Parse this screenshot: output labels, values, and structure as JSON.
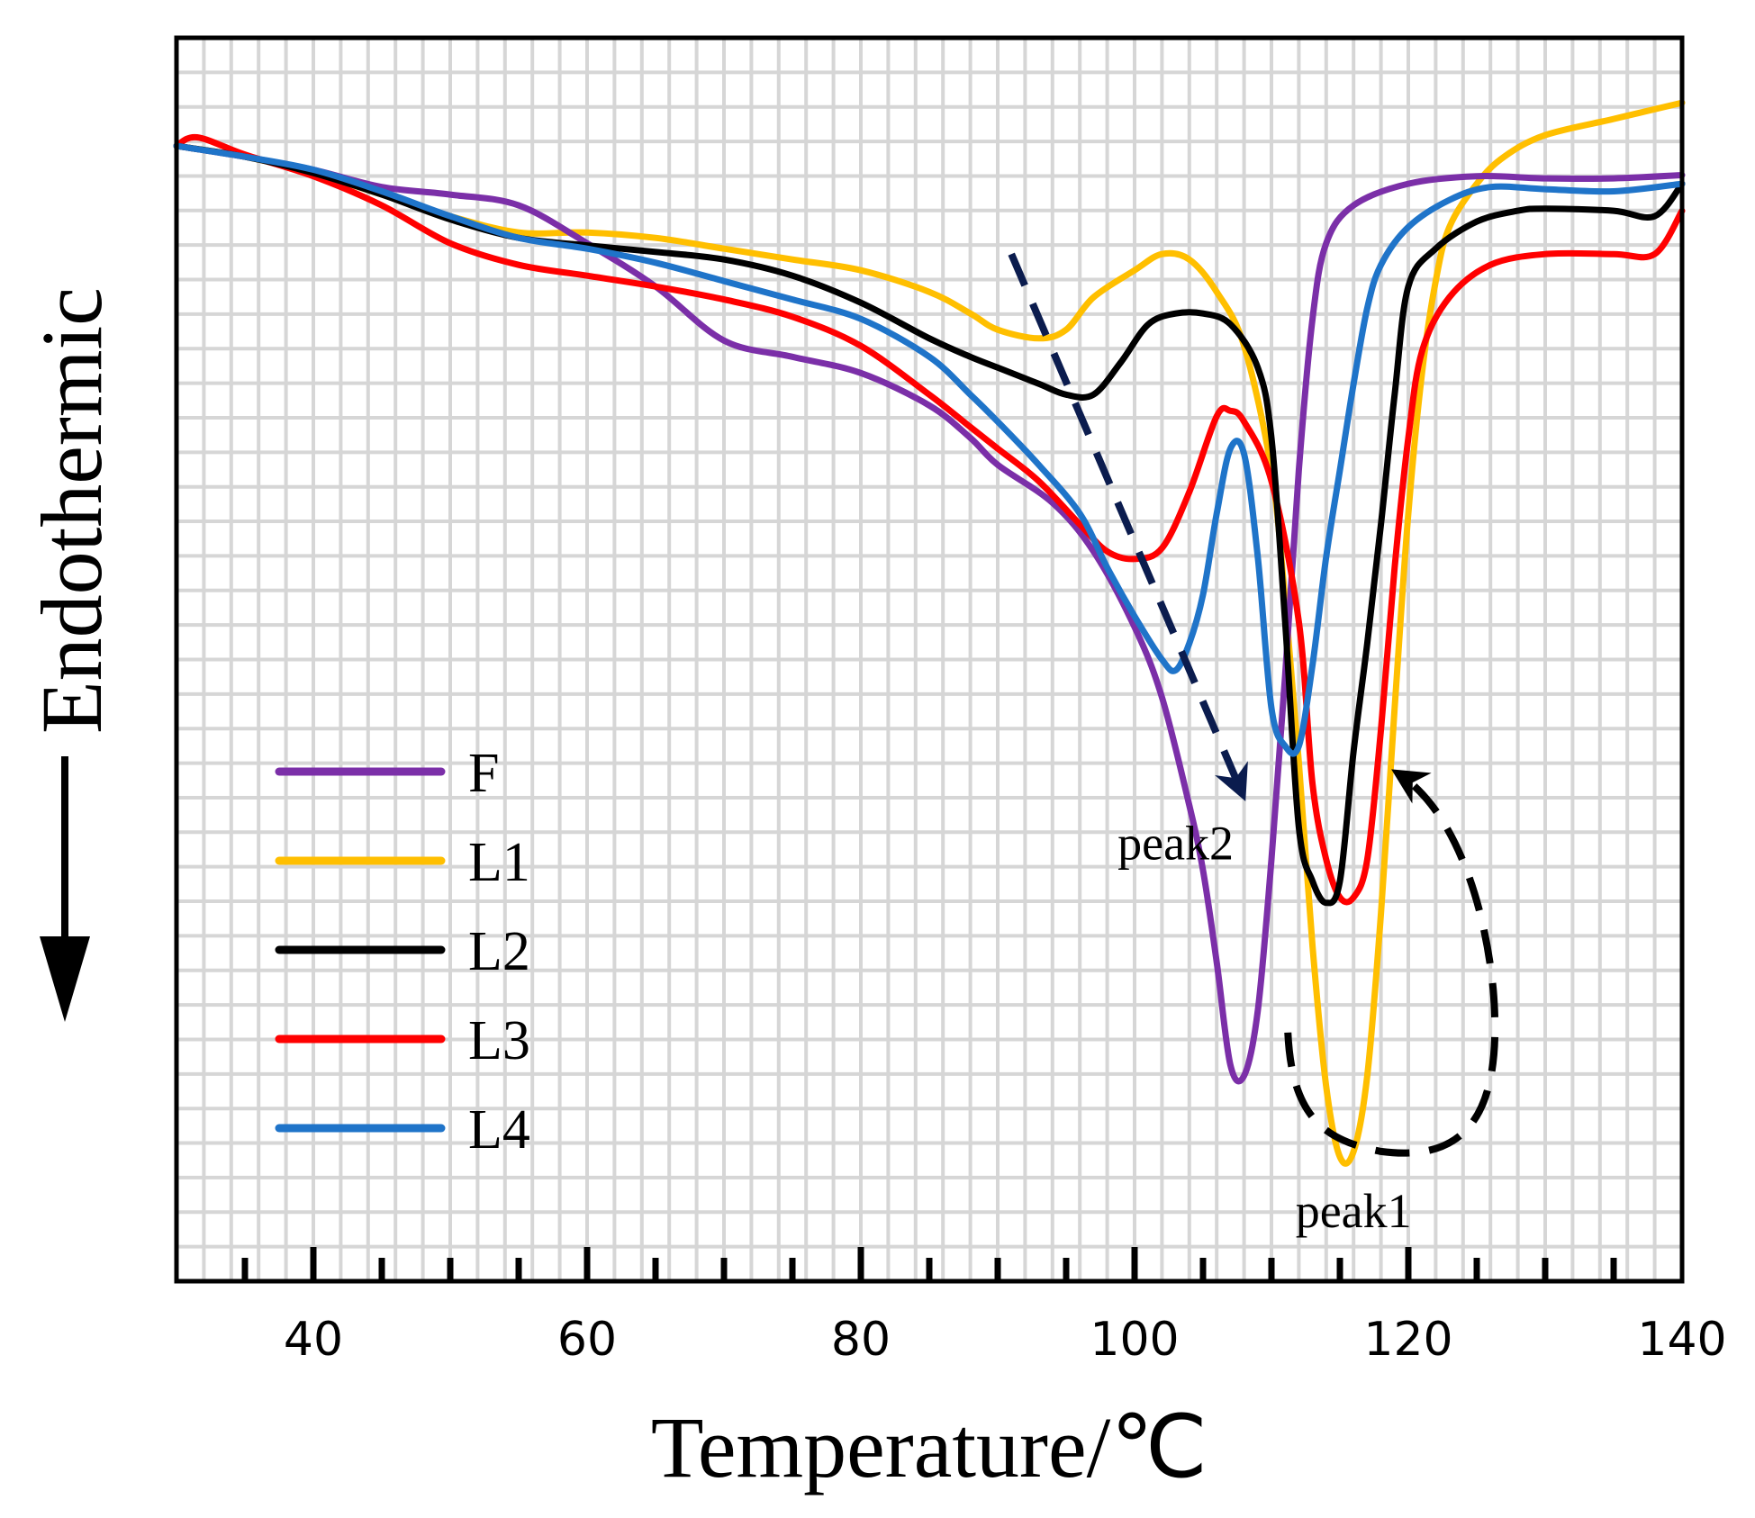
{
  "chart_data": {
    "type": "line",
    "title": "",
    "xlabel": "Temperature/℃",
    "ylabel": "Endothermic",
    "xlim": [
      30,
      140
    ],
    "ylim": [
      -10.5,
      1
    ],
    "x_ticks": [
      40,
      60,
      80,
      100,
      120,
      140
    ],
    "y_ticks_shown": false,
    "grid": true,
    "legend_position": "bottom-left",
    "colors": {
      "F": "#7b2fa8",
      "L1": "#ffbf00",
      "L2": "#000000",
      "L3": "#ff0000",
      "L4": "#1f74c9",
      "peak2_arrow": "#0b1c4e",
      "peak1_arrow": "#000000"
    },
    "series": [
      {
        "name": "F",
        "points": [
          [
            30,
            0
          ],
          [
            35,
            -0.1
          ],
          [
            40,
            -0.22
          ],
          [
            45,
            -0.38
          ],
          [
            50,
            -0.45
          ],
          [
            55,
            -0.55
          ],
          [
            60,
            -0.9
          ],
          [
            65,
            -1.3
          ],
          [
            70,
            -1.8
          ],
          [
            75,
            -1.95
          ],
          [
            80,
            -2.1
          ],
          [
            85,
            -2.4
          ],
          [
            88,
            -2.7
          ],
          [
            90,
            -2.95
          ],
          [
            94,
            -3.3
          ],
          [
            97,
            -3.75
          ],
          [
            100,
            -4.45
          ],
          [
            102,
            -5.1
          ],
          [
            104,
            -6.1
          ],
          [
            105,
            -6.7
          ],
          [
            106,
            -7.55
          ],
          [
            107,
            -8.5
          ],
          [
            108,
            -8.6
          ],
          [
            109,
            -8.0
          ],
          [
            110,
            -6.6
          ],
          [
            111,
            -4.9
          ],
          [
            112,
            -3.0
          ],
          [
            113,
            -1.6
          ],
          [
            114,
            -0.9
          ],
          [
            116,
            -0.55
          ],
          [
            120,
            -0.35
          ],
          [
            125,
            -0.28
          ],
          [
            130,
            -0.3
          ],
          [
            135,
            -0.3
          ],
          [
            140,
            -0.27
          ]
        ]
      },
      {
        "name": "L1",
        "points": [
          [
            30,
            0
          ],
          [
            35,
            -0.1
          ],
          [
            40,
            -0.25
          ],
          [
            45,
            -0.45
          ],
          [
            50,
            -0.65
          ],
          [
            55,
            -0.8
          ],
          [
            60,
            -0.8
          ],
          [
            65,
            -0.85
          ],
          [
            70,
            -0.95
          ],
          [
            75,
            -1.05
          ],
          [
            80,
            -1.15
          ],
          [
            85,
            -1.35
          ],
          [
            88,
            -1.55
          ],
          [
            90,
            -1.7
          ],
          [
            93,
            -1.78
          ],
          [
            95,
            -1.7
          ],
          [
            97,
            -1.4
          ],
          [
            100,
            -1.15
          ],
          [
            102,
            -1.0
          ],
          [
            104,
            -1.05
          ],
          [
            106,
            -1.35
          ],
          [
            108,
            -1.85
          ],
          [
            110,
            -3.0
          ],
          [
            111,
            -4.2
          ],
          [
            112,
            -5.7
          ],
          [
            113,
            -7.4
          ],
          [
            114,
            -8.7
          ],
          [
            115,
            -9.35
          ],
          [
            116,
            -9.3
          ],
          [
            117,
            -8.6
          ],
          [
            118,
            -7.1
          ],
          [
            119,
            -5.2
          ],
          [
            120,
            -3.4
          ],
          [
            121,
            -2.1
          ],
          [
            122,
            -1.25
          ],
          [
            123,
            -0.75
          ],
          [
            125,
            -0.35
          ],
          [
            127,
            -0.1
          ],
          [
            130,
            0.1
          ],
          [
            135,
            0.25
          ],
          [
            140,
            0.4
          ]
        ]
      },
      {
        "name": "L2",
        "points": [
          [
            30,
            0
          ],
          [
            35,
            -0.1
          ],
          [
            40,
            -0.25
          ],
          [
            45,
            -0.45
          ],
          [
            50,
            -0.68
          ],
          [
            55,
            -0.85
          ],
          [
            60,
            -0.92
          ],
          [
            65,
            -0.98
          ],
          [
            70,
            -1.05
          ],
          [
            75,
            -1.2
          ],
          [
            80,
            -1.45
          ],
          [
            85,
            -1.78
          ],
          [
            88,
            -1.95
          ],
          [
            90,
            -2.05
          ],
          [
            93,
            -2.2
          ],
          [
            95,
            -2.3
          ],
          [
            97,
            -2.3
          ],
          [
            99,
            -2.0
          ],
          [
            101,
            -1.65
          ],
          [
            103,
            -1.55
          ],
          [
            105,
            -1.55
          ],
          [
            107,
            -1.65
          ],
          [
            109,
            -2.05
          ],
          [
            110,
            -2.7
          ],
          [
            111,
            -4.4
          ],
          [
            112,
            -6.3
          ],
          [
            113,
            -6.8
          ],
          [
            114,
            -7.0
          ],
          [
            115,
            -6.8
          ],
          [
            116,
            -5.6
          ],
          [
            117,
            -4.6
          ],
          [
            118,
            -3.5
          ],
          [
            119,
            -2.3
          ],
          [
            120,
            -1.3
          ],
          [
            122,
            -0.95
          ],
          [
            125,
            -0.7
          ],
          [
            128,
            -0.6
          ],
          [
            130,
            -0.58
          ],
          [
            135,
            -0.6
          ],
          [
            138,
            -0.65
          ],
          [
            140,
            -0.35
          ]
        ]
      },
      {
        "name": "L3",
        "points": [
          [
            30,
            0
          ],
          [
            31.5,
            0.08
          ],
          [
            35,
            -0.08
          ],
          [
            40,
            -0.28
          ],
          [
            45,
            -0.55
          ],
          [
            50,
            -0.9
          ],
          [
            55,
            -1.1
          ],
          [
            60,
            -1.2
          ],
          [
            65,
            -1.3
          ],
          [
            70,
            -1.42
          ],
          [
            75,
            -1.58
          ],
          [
            80,
            -1.85
          ],
          [
            85,
            -2.3
          ],
          [
            88,
            -2.6
          ],
          [
            90,
            -2.8
          ],
          [
            93,
            -3.1
          ],
          [
            96,
            -3.5
          ],
          [
            98,
            -3.75
          ],
          [
            100,
            -3.82
          ],
          [
            102,
            -3.72
          ],
          [
            104,
            -3.2
          ],
          [
            106,
            -2.5
          ],
          [
            107,
            -2.45
          ],
          [
            108,
            -2.55
          ],
          [
            110,
            -3.1
          ],
          [
            112,
            -4.4
          ],
          [
            113,
            -5.9
          ],
          [
            114,
            -6.6
          ],
          [
            115,
            -6.95
          ],
          [
            116,
            -6.95
          ],
          [
            117,
            -6.6
          ],
          [
            118,
            -5.4
          ],
          [
            119,
            -3.9
          ],
          [
            120,
            -2.7
          ],
          [
            121,
            -1.9
          ],
          [
            123,
            -1.4
          ],
          [
            126,
            -1.1
          ],
          [
            130,
            -1.0
          ],
          [
            135,
            -1.0
          ],
          [
            138,
            -1.0
          ],
          [
            140,
            -0.6
          ]
        ]
      },
      {
        "name": "L4",
        "points": [
          [
            30,
            0
          ],
          [
            35,
            -0.1
          ],
          [
            40,
            -0.22
          ],
          [
            45,
            -0.42
          ],
          [
            50,
            -0.65
          ],
          [
            55,
            -0.85
          ],
          [
            60,
            -0.95
          ],
          [
            65,
            -1.08
          ],
          [
            70,
            -1.25
          ],
          [
            75,
            -1.42
          ],
          [
            80,
            -1.6
          ],
          [
            85,
            -1.95
          ],
          [
            88,
            -2.3
          ],
          [
            90,
            -2.55
          ],
          [
            93,
            -2.95
          ],
          [
            96,
            -3.4
          ],
          [
            98,
            -3.9
          ],
          [
            100,
            -4.35
          ],
          [
            102,
            -4.75
          ],
          [
            103,
            -4.85
          ],
          [
            104,
            -4.6
          ],
          [
            105,
            -4.15
          ],
          [
            106,
            -3.4
          ],
          [
            107,
            -2.8
          ],
          [
            108,
            -2.85
          ],
          [
            109,
            -3.8
          ],
          [
            110,
            -5.2
          ],
          [
            111,
            -5.55
          ],
          [
            112,
            -5.55
          ],
          [
            113,
            -4.8
          ],
          [
            114,
            -3.8
          ],
          [
            115,
            -3.0
          ],
          [
            116,
            -2.2
          ],
          [
            117,
            -1.5
          ],
          [
            118,
            -1.1
          ],
          [
            120,
            -0.75
          ],
          [
            123,
            -0.5
          ],
          [
            126,
            -0.38
          ],
          [
            130,
            -0.4
          ],
          [
            135,
            -0.42
          ],
          [
            140,
            -0.35
          ]
        ]
      }
    ],
    "annotations": [
      {
        "text": "peak2",
        "x": 103,
        "y": -6.6
      },
      {
        "text": "peak1",
        "x": 116,
        "y": -10.0
      }
    ]
  }
}
